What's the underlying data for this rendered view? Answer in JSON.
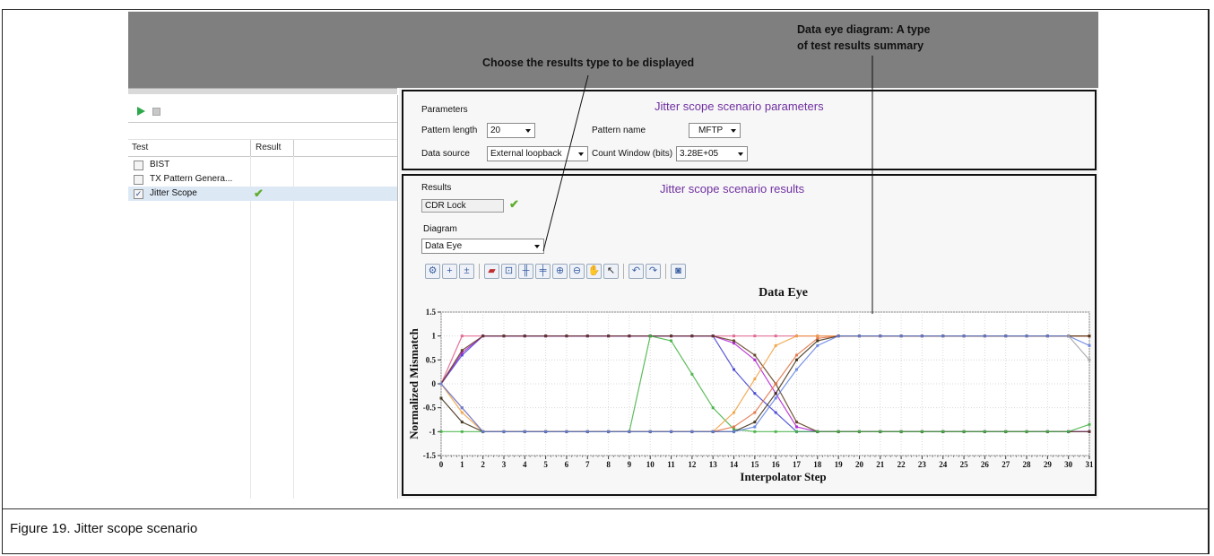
{
  "callouts": {
    "results_type": "Choose the results type to be displayed",
    "data_eye_line1": "Data eye diagram: A type",
    "data_eye_line2": "of test results summary"
  },
  "tree": {
    "col_test": "Test",
    "col_result": "Result",
    "rows": [
      {
        "label": "BIST",
        "checked": false,
        "result": ""
      },
      {
        "label": "TX Pattern Genera...",
        "checked": false,
        "result": ""
      },
      {
        "label": "Jitter Scope",
        "checked": true,
        "result": "pass"
      }
    ]
  },
  "params": {
    "section_label": "Parameters",
    "title": "Jitter scope scenario parameters",
    "pattern_length_label": "Pattern length",
    "pattern_length_value": "20",
    "pattern_name_label": "Pattern name",
    "pattern_name_value": "MFTP",
    "data_source_label": "Data source",
    "data_source_value": "External loopback",
    "count_window_label": "Count Window (bits)",
    "count_window_value": "3.28E+05"
  },
  "results": {
    "section_label": "Results",
    "title": "Jitter scope scenario results",
    "cdr_lock_label": "CDR Lock",
    "diagram_label": "Diagram",
    "diagram_value": "Data Eye"
  },
  "toolbar_icons": [
    "settings-icon",
    "add-marker-icon",
    "remove-marker-icon",
    "edit-range-icon",
    "zoom-box-icon",
    "horizontal-marker-icon",
    "vertical-marker-icon",
    "zoom-in-icon",
    "zoom-out-icon",
    "pan-hand-icon",
    "pointer-icon",
    "undo-icon",
    "redo-icon",
    "camera-icon"
  ],
  "chart_data": {
    "type": "line",
    "title": "Data Eye",
    "xlabel": "Interpolator Step",
    "ylabel": "Normalized Mismatch",
    "xlim": [
      0,
      31
    ],
    "ylim": [
      -1.5,
      1.5
    ],
    "x_ticks": [
      0,
      1,
      2,
      3,
      4,
      5,
      6,
      7,
      8,
      9,
      10,
      11,
      12,
      13,
      14,
      15,
      16,
      17,
      18,
      19,
      20,
      21,
      22,
      23,
      24,
      25,
      26,
      27,
      28,
      29,
      30,
      31
    ],
    "y_ticks": [
      "-1.5",
      "-1",
      "-0.5",
      "0",
      "0.5",
      "1",
      "1.5"
    ],
    "y_tick_values": [
      -1.5,
      -1,
      -0.5,
      0,
      0.5,
      1,
      1.5
    ],
    "grid": true,
    "series": [
      {
        "color": "#e05c8a",
        "values": [
          0,
          1,
          1,
          1,
          1,
          1,
          1,
          1,
          1,
          1,
          1,
          1,
          1,
          1,
          1,
          1,
          1,
          1,
          1,
          1,
          1,
          1,
          1,
          1,
          1,
          1,
          1,
          1,
          1,
          1,
          1,
          1
        ]
      },
      {
        "color": "#4040d0",
        "values": [
          0,
          0.6,
          1,
          1,
          1,
          1,
          1,
          1,
          1,
          1,
          1,
          1,
          1,
          1,
          0.3,
          -0.2,
          -0.6,
          -1,
          -1,
          -1,
          -1,
          -1,
          -1,
          -1,
          -1,
          -1,
          -1,
          -1,
          -1,
          -1,
          -1,
          -1
        ]
      },
      {
        "color": "#b020d0",
        "values": [
          0,
          0.65,
          1,
          1,
          1,
          1,
          1,
          1,
          1,
          1,
          1,
          1,
          1,
          1,
          0.85,
          0.5,
          -0.2,
          -0.9,
          -1,
          -1,
          -1,
          -1,
          -1,
          -1,
          -1,
          -1,
          -1,
          -1,
          -1,
          -1,
          -1,
          -1
        ]
      },
      {
        "color": "#5a3a1a",
        "values": [
          0,
          0.7,
          1,
          1,
          1,
          1,
          1,
          1,
          1,
          1,
          1,
          1,
          1,
          1,
          0.9,
          0.6,
          0,
          -0.8,
          -1,
          -1,
          -1,
          -1,
          -1,
          -1,
          -1,
          -1,
          -1,
          -1,
          -1,
          -1,
          -1,
          -1
        ]
      },
      {
        "color": "#40b040",
        "values": [
          -1,
          -1,
          -1,
          -1,
          -1,
          -1,
          -1,
          -1,
          -1,
          -1,
          1,
          0.9,
          0.2,
          -0.5,
          -0.95,
          -1,
          -1,
          -1,
          -1,
          -1,
          -1,
          -1,
          -1,
          -1,
          -1,
          -1,
          -1,
          -1,
          -1,
          -1,
          -1,
          -0.85
        ]
      },
      {
        "color": "#f0a040",
        "values": [
          0,
          -0.6,
          -1,
          -1,
          -1,
          -1,
          -1,
          -1,
          -1,
          -1,
          -1,
          -1,
          -1,
          -1,
          -0.6,
          0.1,
          0.8,
          1,
          1,
          1,
          1,
          1,
          1,
          1,
          1,
          1,
          1,
          1,
          1,
          1,
          1,
          1
        ]
      },
      {
        "color": "#e07040",
        "values": [
          0,
          -0.5,
          -1,
          -1,
          -1,
          -1,
          -1,
          -1,
          -1,
          -1,
          -1,
          -1,
          -1,
          -1,
          -0.9,
          -0.6,
          0,
          0.6,
          0.95,
          1,
          1,
          1,
          1,
          1,
          1,
          1,
          1,
          1,
          1,
          1,
          1,
          1
        ]
      },
      {
        "color": "#3a2a10",
        "values": [
          -0.3,
          -0.8,
          -1,
          -1,
          -1,
          -1,
          -1,
          -1,
          -1,
          -1,
          -1,
          -1,
          -1,
          -1,
          -1,
          -0.8,
          -0.2,
          0.5,
          0.9,
          1,
          1,
          1,
          1,
          1,
          1,
          1,
          1,
          1,
          1,
          1,
          1,
          1
        ]
      },
      {
        "color": "#6080e0",
        "values": [
          0,
          -0.5,
          -1,
          -1,
          -1,
          -1,
          -1,
          -1,
          -1,
          -1,
          -1,
          -1,
          -1,
          -1,
          -1,
          -0.9,
          -0.3,
          0.3,
          0.8,
          1,
          1,
          1,
          1,
          1,
          1,
          1,
          1,
          1,
          1,
          1,
          1,
          0.8
        ]
      },
      {
        "color": "#a0a0a0",
        "values": [
          null,
          null,
          null,
          null,
          null,
          null,
          null,
          null,
          null,
          null,
          null,
          null,
          null,
          null,
          null,
          null,
          null,
          null,
          null,
          null,
          null,
          null,
          null,
          null,
          null,
          null,
          null,
          null,
          null,
          null,
          1,
          0.5
        ]
      }
    ]
  },
  "caption": "Figure 19.  Jitter scope scenario"
}
